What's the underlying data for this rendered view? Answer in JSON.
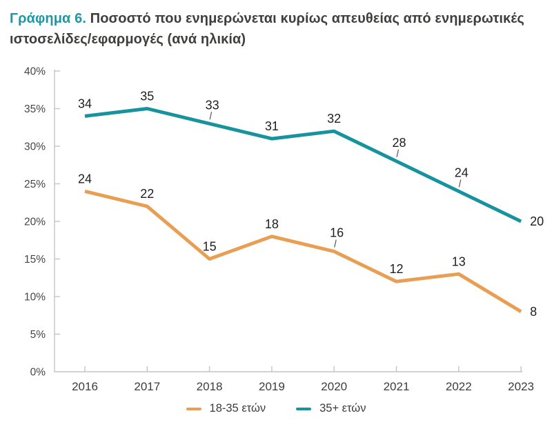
{
  "title": {
    "prefix": "Γράφημα 6.",
    "text": "Ποσοστό που ενημερώνεται κυρίως απευθείας από ενημερωτικές ιστοσελίδες/εφαρμογές (ανά ηλικία)"
  },
  "colors": {
    "accent_teal": "#1B98A4",
    "title_text": "#3E3E3D",
    "axis_line": "#C4C4C4",
    "tick_label": "#454545",
    "data_label": "#1E1E1E",
    "leader_line": "#555555"
  },
  "chart_data": {
    "type": "line",
    "title": "Γράφημα 6. Ποσοστό που ενημερώνεται κυρίως απευθείας από ενημερωτικές ιστοσελίδες/εφαρμογές (ανά ηλικία)",
    "categories": [
      "2016",
      "2017",
      "2018",
      "2019",
      "2020",
      "2021",
      "2022",
      "2023"
    ],
    "series": [
      {
        "name": "18-35 ετών",
        "color": "#E99F53",
        "values": [
          24,
          22,
          15,
          18,
          16,
          12,
          13,
          8
        ],
        "label_placements": [
          "above",
          "above",
          "above",
          "above",
          "leader",
          "above",
          "above",
          "right"
        ]
      },
      {
        "name": "35+ ετών",
        "color": "#17939E",
        "values": [
          34,
          35,
          33,
          31,
          32,
          28,
          24,
          20
        ],
        "label_placements": [
          "above",
          "above",
          "leader",
          "above",
          "above",
          "leader",
          "leader",
          "right"
        ]
      }
    ],
    "xlabel": "",
    "ylabel": "",
    "ylim": [
      0,
      40
    ],
    "y_tick_step": 5,
    "y_tick_suffix": "%",
    "grid": false,
    "data_labels": true,
    "legend_position": "bottom"
  }
}
